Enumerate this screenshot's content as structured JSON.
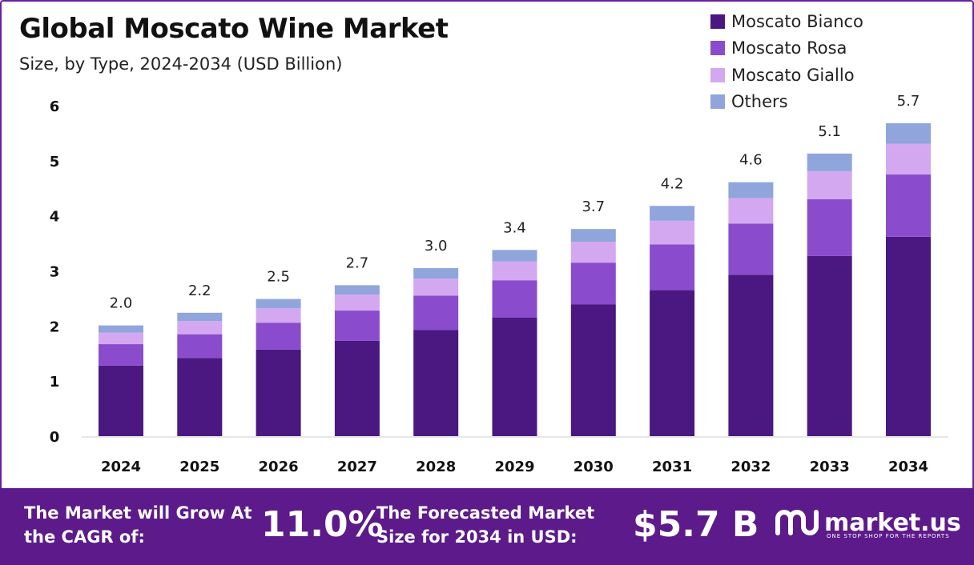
{
  "header": {
    "title": "Global Moscato Wine Market",
    "subtitle": "Size, by Type, 2024-2034 (USD Billion)"
  },
  "chart_data": {
    "type": "bar",
    "stacked": true,
    "categories": [
      "2024",
      "2025",
      "2026",
      "2027",
      "2028",
      "2029",
      "2030",
      "2031",
      "2032",
      "2033",
      "2034"
    ],
    "series": [
      {
        "name": "Moscato Bianco",
        "color": "#4a1880",
        "values": [
          1.28,
          1.42,
          1.57,
          1.73,
          1.93,
          2.15,
          2.39,
          2.65,
          2.93,
          3.27,
          3.62
        ]
      },
      {
        "name": "Moscato Rosa",
        "color": "#8a4ccc",
        "values": [
          0.39,
          0.43,
          0.49,
          0.55,
          0.62,
          0.68,
          0.76,
          0.83,
          0.93,
          1.03,
          1.13
        ]
      },
      {
        "name": "Moscato Giallo",
        "color": "#d4a8f0",
        "values": [
          0.21,
          0.24,
          0.26,
          0.29,
          0.31,
          0.34,
          0.38,
          0.43,
          0.46,
          0.51,
          0.56
        ]
      },
      {
        "name": "Others",
        "color": "#8fa5dc",
        "values": [
          0.13,
          0.15,
          0.17,
          0.17,
          0.19,
          0.21,
          0.23,
          0.27,
          0.29,
          0.32,
          0.37
        ]
      }
    ],
    "totals": [
      "2.0",
      "2.2",
      "2.5",
      "2.7",
      "3.0",
      "3.4",
      "3.7",
      "4.2",
      "4.6",
      "5.1",
      "5.7"
    ],
    "yticks": [
      "0",
      "1",
      "2",
      "3",
      "4",
      "5",
      "6"
    ],
    "ylim": [
      0,
      6
    ],
    "grid": false,
    "legend_position": "top-right"
  },
  "footer": {
    "cagr_label": "The Market will Grow At the CAGR of:",
    "cagr_value": "11.0%",
    "size_label": "The Forecasted Market Size for 2034 in USD:",
    "size_value": "$5.7 B",
    "brand_name": "market.us",
    "brand_tagline": "ONE STOP SHOP FOR THE REPORTS",
    "brand_icon": "market-us-logo-icon"
  }
}
